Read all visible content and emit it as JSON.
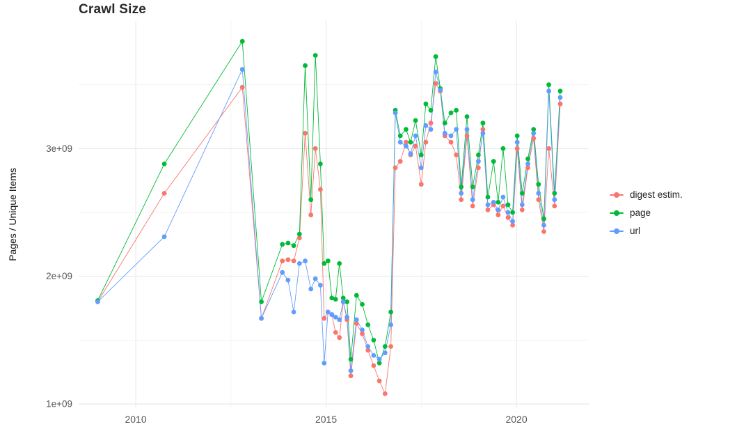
{
  "chart_data": {
    "type": "line",
    "title": "Crawl Size",
    "xlabel": "",
    "ylabel": "Pages / Unique Items",
    "y_unit": "1e+09 (values stored in billions)",
    "grid": "major and minor light-gray gridlines on white background",
    "legend_position": "right",
    "xlim": [
      2008.5,
      2021.9
    ],
    "ylim_billions": [
      0.973,
      4.0
    ],
    "x_ticks": [
      {
        "value": 2010,
        "label": "2010"
      },
      {
        "value": 2015,
        "label": "2015"
      },
      {
        "value": 2020,
        "label": "2020"
      }
    ],
    "y_ticks": [
      {
        "value": 1,
        "label": "1e+09"
      },
      {
        "value": 2,
        "label": "2e+09"
      },
      {
        "value": 3,
        "label": "3e+09"
      }
    ],
    "x_minor_ticks": [
      2012.5,
      2017.5
    ],
    "y_minor_ticks": [
      1.5,
      2.5,
      3.5
    ],
    "x": [
      2009.0,
      2010.75,
      2012.8,
      2013.3,
      2013.85,
      2014.0,
      2014.15,
      2014.3,
      2014.45,
      2014.6,
      2014.72,
      2014.85,
      2014.95,
      2015.05,
      2015.15,
      2015.25,
      2015.35,
      2015.45,
      2015.55,
      2015.65,
      2015.8,
      2015.95,
      2016.1,
      2016.25,
      2016.4,
      2016.55,
      2016.7,
      2016.82,
      2016.95,
      2017.1,
      2017.22,
      2017.35,
      2017.5,
      2017.62,
      2017.75,
      2017.88,
      2018.0,
      2018.12,
      2018.28,
      2018.42,
      2018.55,
      2018.7,
      2018.85,
      2019.0,
      2019.12,
      2019.25,
      2019.4,
      2019.52,
      2019.65,
      2019.78,
      2019.9,
      2020.02,
      2020.15,
      2020.3,
      2020.45,
      2020.58,
      2020.72,
      2020.85,
      2021.0,
      2021.15
    ],
    "series": [
      {
        "name": "digest estim.",
        "color": "#F8766D",
        "values": [
          1.8,
          2.65,
          3.48,
          1.67,
          2.12,
          2.13,
          2.12,
          2.3,
          3.12,
          2.48,
          3.0,
          2.68,
          1.67,
          1.72,
          1.7,
          1.56,
          1.52,
          1.8,
          1.66,
          1.22,
          1.63,
          1.55,
          1.42,
          1.3,
          1.18,
          1.08,
          1.45,
          2.85,
          2.9,
          3.05,
          2.95,
          3.02,
          2.72,
          3.05,
          3.2,
          3.51,
          3.45,
          3.1,
          3.05,
          2.95,
          2.6,
          3.1,
          2.55,
          2.85,
          3.15,
          2.52,
          2.56,
          2.48,
          2.55,
          2.46,
          2.4,
          3.0,
          2.52,
          2.85,
          3.08,
          2.6,
          2.35,
          3.0,
          2.55,
          3.35
        ]
      },
      {
        "name": "page",
        "color": "#00BA38",
        "values": [
          1.81,
          2.88,
          3.84,
          1.8,
          2.25,
          2.26,
          2.24,
          2.33,
          3.65,
          2.6,
          3.73,
          2.88,
          2.1,
          2.12,
          1.83,
          1.82,
          2.1,
          1.83,
          1.8,
          1.35,
          1.85,
          1.78,
          1.62,
          1.5,
          1.32,
          1.45,
          1.72,
          3.3,
          3.1,
          3.15,
          3.05,
          3.22,
          2.95,
          3.35,
          3.3,
          3.72,
          3.47,
          3.2,
          3.28,
          3.3,
          2.7,
          3.25,
          2.7,
          2.95,
          3.2,
          2.62,
          2.9,
          2.58,
          3.0,
          2.56,
          2.5,
          3.1,
          2.65,
          2.92,
          3.15,
          2.72,
          2.45,
          3.5,
          2.65,
          3.45
        ]
      },
      {
        "name": "url",
        "color": "#619CFF",
        "values": [
          1.8,
          2.31,
          3.62,
          1.67,
          2.03,
          1.97,
          1.72,
          2.1,
          2.12,
          1.9,
          1.98,
          1.93,
          1.32,
          1.72,
          1.7,
          1.68,
          1.66,
          1.8,
          1.68,
          1.26,
          1.66,
          1.58,
          1.45,
          1.38,
          1.35,
          1.4,
          1.62,
          3.28,
          3.05,
          3.02,
          2.96,
          3.1,
          2.85,
          3.18,
          3.15,
          3.6,
          3.46,
          3.12,
          3.1,
          3.15,
          2.65,
          3.15,
          2.6,
          2.9,
          3.12,
          2.56,
          2.58,
          2.52,
          2.62,
          2.5,
          2.43,
          3.05,
          2.56,
          2.88,
          3.12,
          2.65,
          2.4,
          3.45,
          2.6,
          3.4
        ]
      }
    ]
  }
}
